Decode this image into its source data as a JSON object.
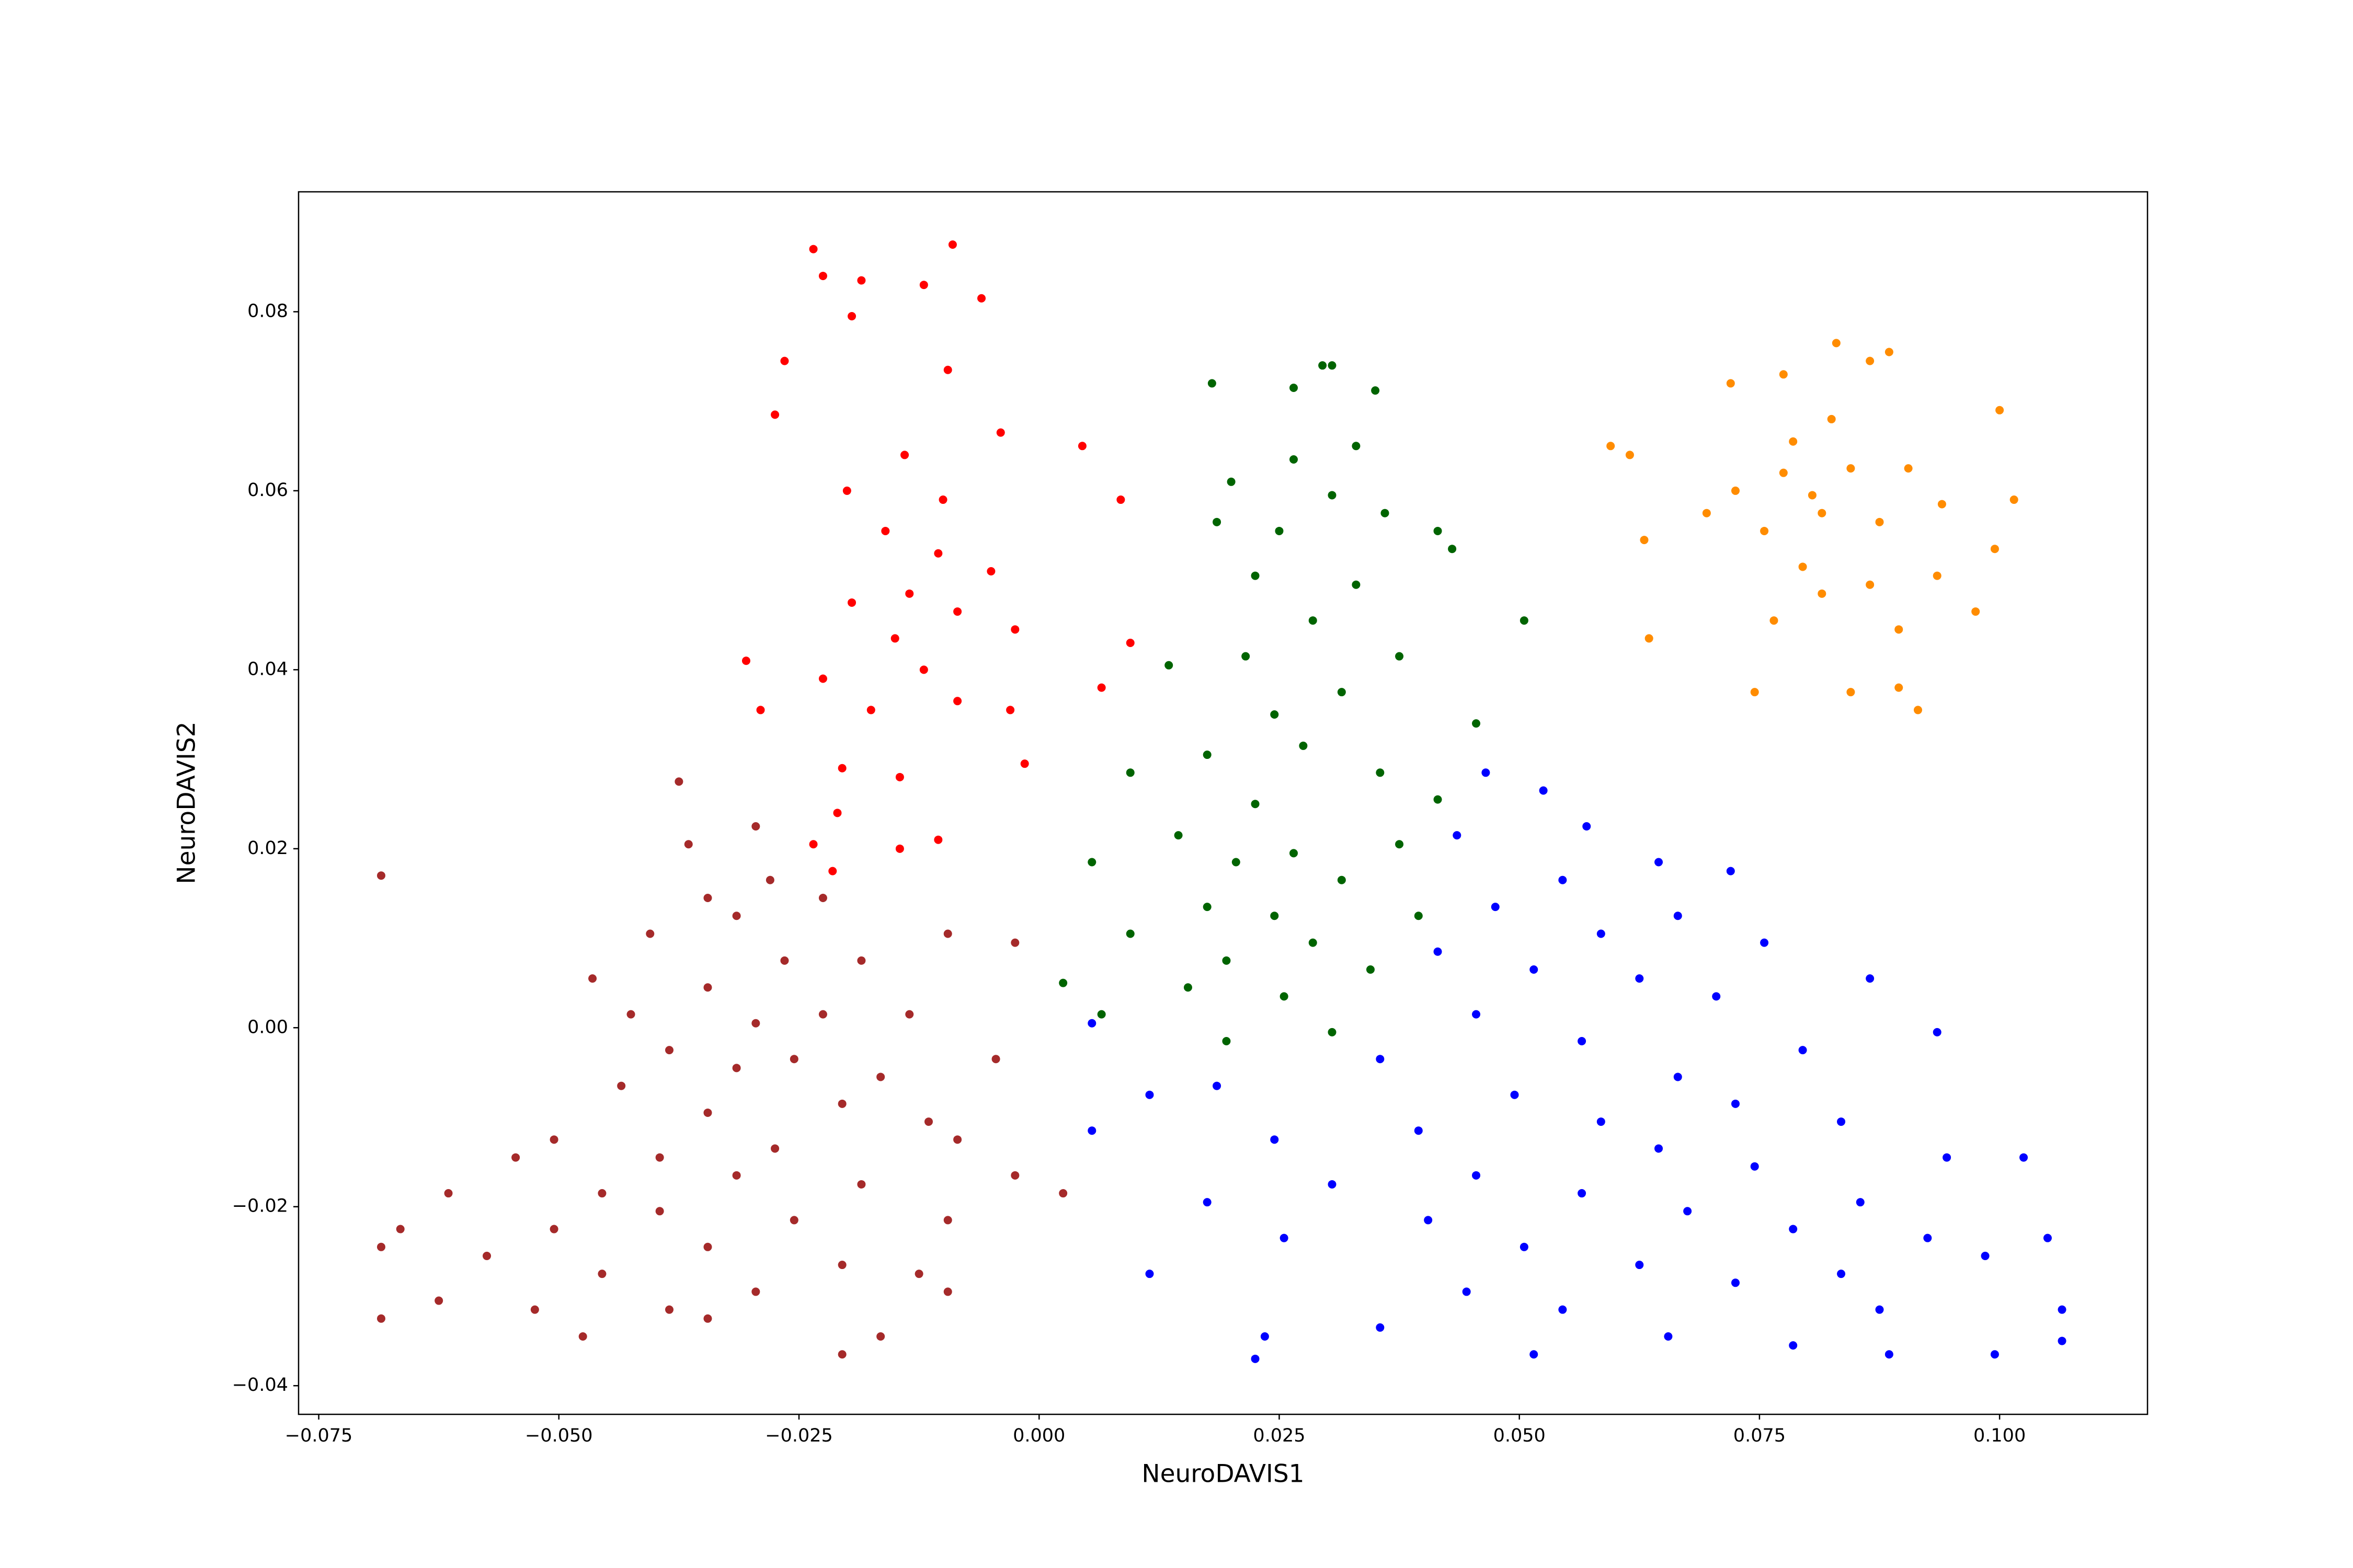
{
  "chart_data": {
    "type": "scatter",
    "x_label": "NeuroDAVIS1",
    "y_label": "NeuroDAVIS2",
    "xlim": [
      -0.0771,
      0.1154
    ],
    "ylim": [
      -0.0432,
      0.0934
    ],
    "xticks": [
      {
        "value": -0.075,
        "label": "−0.075"
      },
      {
        "value": -0.05,
        "label": "−0.050"
      },
      {
        "value": -0.025,
        "label": "−0.025"
      },
      {
        "value": 0,
        "label": "0.000"
      },
      {
        "value": 0.025,
        "label": "0.025"
      },
      {
        "value": 0.05,
        "label": "0.050"
      },
      {
        "value": 0.075,
        "label": "0.075"
      },
      {
        "value": 0.1,
        "label": "0.100"
      }
    ],
    "yticks": [
      {
        "value": -0.04,
        "label": "−0.04"
      },
      {
        "value": -0.02,
        "label": "−0.02"
      },
      {
        "value": 0,
        "label": "0.00"
      },
      {
        "value": 0.02,
        "label": "0.02"
      },
      {
        "value": 0.04,
        "label": "0.04"
      },
      {
        "value": 0.06,
        "label": "0.06"
      },
      {
        "value": 0.08,
        "label": "0.08"
      }
    ],
    "series": [
      {
        "color": "#ff8c00",
        "x": [
          0.083,
          0.0885,
          0.0865,
          0.0775,
          0.072,
          0.1,
          0.0595,
          0.0615,
          0.063,
          0.0635,
          0.0745,
          0.0845,
          0.0915,
          0.0895,
          0.0975,
          0.1015,
          0.0995,
          0.0805,
          0.0815,
          0.0775,
          0.0845,
          0.0875,
          0.0755,
          0.0795,
          0.0815,
          0.0725,
          0.0905,
          0.094,
          0.0865,
          0.0765,
          0.0935,
          0.0695,
          0.0895,
          0.0825,
          0.0785
        ],
        "y": [
          0.0765,
          0.0755,
          0.0745,
          0.073,
          0.072,
          0.069,
          0.065,
          0.064,
          0.0545,
          0.0435,
          0.0375,
          0.0375,
          0.0355,
          0.038,
          0.0465,
          0.059,
          0.0535,
          0.0595,
          0.0575,
          0.062,
          0.0625,
          0.0565,
          0.0555,
          0.0515,
          0.0485,
          0.06,
          0.0625,
          0.0585,
          0.0495,
          0.0455,
          0.0505,
          0.0575,
          0.0445,
          0.068,
          0.0655
        ]
      },
      {
        "color": "#ff0000",
        "x": [
          -0.0235,
          -0.009,
          -0.0225,
          -0.0185,
          -0.012,
          -0.006,
          -0.0195,
          -0.0265,
          -0.0095,
          -0.0275,
          -0.004,
          -0.014,
          -0.02,
          -0.01,
          0.0045,
          0.0085,
          -0.016,
          -0.0105,
          -0.005,
          -0.0135,
          -0.0085,
          -0.0195,
          -0.015,
          -0.0025,
          -0.012,
          -0.0225,
          -0.0175,
          -0.0085,
          -0.003,
          -0.029,
          -0.0305,
          -0.0205,
          -0.0145,
          -0.0015,
          0.0065,
          0.0095,
          -0.021,
          -0.0145,
          -0.0105,
          -0.0215,
          -0.0235
        ],
        "y": [
          0.087,
          0.0875,
          0.084,
          0.0835,
          0.083,
          0.0815,
          0.0795,
          0.0745,
          0.0735,
          0.0685,
          0.0665,
          0.064,
          0.06,
          0.059,
          0.065,
          0.059,
          0.0555,
          0.053,
          0.051,
          0.0485,
          0.0465,
          0.0475,
          0.0435,
          0.0445,
          0.04,
          0.039,
          0.0355,
          0.0365,
          0.0355,
          0.0355,
          0.041,
          0.029,
          0.028,
          0.0295,
          0.038,
          0.043,
          0.024,
          0.02,
          0.021,
          0.0175,
          0.0205
        ]
      },
      {
        "color": "#006400",
        "x": [
          0.0295,
          0.0305,
          0.018,
          0.035,
          0.0265,
          0.033,
          0.0265,
          0.02,
          0.0305,
          0.036,
          0.0185,
          0.025,
          0.0415,
          0.043,
          0.0225,
          0.033,
          0.0505,
          0.0285,
          0.0215,
          0.0375,
          0.0135,
          0.0315,
          0.0245,
          0.0455,
          0.0175,
          0.0275,
          0.0355,
          0.0095,
          0.0225,
          0.0415,
          0.0145,
          0.0265,
          0.0205,
          0.0375,
          0.0055,
          0.0315,
          0.0175,
          0.0245,
          0.0395,
          0.0095,
          0.0285,
          0.0195,
          0.0345,
          0.0025,
          0.0155,
          0.0255,
          0.0065,
          0.0305,
          0.0195
        ],
        "y": [
          0.074,
          0.074,
          0.072,
          0.0712,
          0.0715,
          0.065,
          0.0635,
          0.061,
          0.0595,
          0.0575,
          0.0565,
          0.0555,
          0.0555,
          0.0535,
          0.0505,
          0.0495,
          0.0455,
          0.0455,
          0.0415,
          0.0415,
          0.0405,
          0.0375,
          0.035,
          0.034,
          0.0305,
          0.0315,
          0.0285,
          0.0285,
          0.025,
          0.0255,
          0.0215,
          0.0195,
          0.0185,
          0.0205,
          0.0185,
          0.0165,
          0.0135,
          0.0125,
          0.0125,
          0.0105,
          0.0095,
          0.0075,
          0.0065,
          0.005,
          0.0045,
          0.0035,
          0.0015,
          -0.0005,
          -0.0015
        ]
      },
      {
        "color": "#0000ff",
        "x": [
          0.0465,
          0.0525,
          0.057,
          0.0435,
          0.0645,
          0.072,
          0.0545,
          0.0475,
          0.0665,
          0.0585,
          0.0755,
          0.0415,
          0.0515,
          0.0625,
          0.0865,
          0.0705,
          0.0055,
          0.0935,
          0.0455,
          0.0565,
          0.0795,
          0.0355,
          0.0665,
          0.0185,
          0.0495,
          0.0725,
          0.0115,
          0.0585,
          0.0835,
          0.0395,
          0.0245,
          0.0055,
          0.0645,
          0.0945,
          0.0745,
          0.0455,
          0.0305,
          0.0565,
          0.0855,
          0.0175,
          0.0675,
          0.1025,
          0.0405,
          0.0785,
          0.0505,
          0.0925,
          0.0255,
          0.0625,
          0.0115,
          0.0725,
          0.0835,
          0.0445,
          0.0985,
          0.0545,
          0.0875,
          0.1065,
          0.0355,
          0.0655,
          0.0235,
          0.0785,
          0.0225,
          0.0515,
          0.0885,
          0.0995,
          0.1065,
          0.105
        ],
        "y": [
          0.0285,
          0.0265,
          0.0225,
          0.0215,
          0.0185,
          0.0175,
          0.0165,
          0.0135,
          0.0125,
          0.0105,
          0.0095,
          0.0085,
          0.0065,
          0.0055,
          0.0055,
          0.0035,
          0.0005,
          -0.0005,
          0.0015,
          -0.0015,
          -0.0025,
          -0.0035,
          -0.0055,
          -0.0065,
          -0.0075,
          -0.0085,
          -0.0075,
          -0.0105,
          -0.0105,
          -0.0115,
          -0.0125,
          -0.0115,
          -0.0135,
          -0.0145,
          -0.0155,
          -0.0165,
          -0.0175,
          -0.0185,
          -0.0195,
          -0.0195,
          -0.0205,
          -0.0145,
          -0.0215,
          -0.0225,
          -0.0245,
          -0.0235,
          -0.0235,
          -0.0265,
          -0.0275,
          -0.0285,
          -0.0275,
          -0.0295,
          -0.0255,
          -0.0315,
          -0.0315,
          -0.0315,
          -0.0335,
          -0.0345,
          -0.0345,
          -0.0355,
          -0.037,
          -0.0365,
          -0.0365,
          -0.0365,
          -0.035,
          -0.0235
        ]
      },
      {
        "color": "#a52a2a",
        "x": [
          -0.0375,
          -0.0685,
          -0.0295,
          -0.0365,
          -0.028,
          -0.0345,
          -0.0225,
          -0.0315,
          -0.0405,
          -0.0025,
          -0.0095,
          -0.0465,
          -0.0265,
          -0.0185,
          -0.0345,
          -0.0425,
          -0.0295,
          -0.0225,
          -0.0135,
          -0.0385,
          -0.0315,
          -0.0255,
          -0.0165,
          -0.0045,
          -0.0435,
          -0.0205,
          -0.0345,
          -0.0115,
          -0.0505,
          -0.0275,
          -0.0395,
          -0.0085,
          -0.0545,
          -0.0315,
          -0.0185,
          -0.0455,
          -0.0025,
          -0.0395,
          -0.0615,
          -0.0255,
          -0.0505,
          -0.0095,
          -0.0665,
          -0.0345,
          -0.0575,
          -0.0205,
          -0.0455,
          -0.0685,
          -0.0125,
          -0.0295,
          -0.0625,
          -0.0525,
          -0.0385,
          -0.0095,
          -0.0685,
          -0.0475,
          -0.0345,
          -0.0205,
          -0.0165,
          0.0025
        ],
        "y": [
          0.0275,
          0.017,
          0.0225,
          0.0205,
          0.0165,
          0.0145,
          0.0145,
          0.0125,
          0.0105,
          0.0095,
          0.0105,
          0.0055,
          0.0075,
          0.0075,
          0.0045,
          0.0015,
          0.0005,
          0.0015,
          0.0015,
          -0.0025,
          -0.0045,
          -0.0035,
          -0.0055,
          -0.0035,
          -0.0065,
          -0.0085,
          -0.0095,
          -0.0105,
          -0.0125,
          -0.0135,
          -0.0145,
          -0.0125,
          -0.0145,
          -0.0165,
          -0.0175,
          -0.0185,
          -0.0165,
          -0.0205,
          -0.0185,
          -0.0215,
          -0.0225,
          -0.0215,
          -0.0225,
          -0.0245,
          -0.0255,
          -0.0265,
          -0.0275,
          -0.0245,
          -0.0275,
          -0.0295,
          -0.0305,
          -0.0315,
          -0.0315,
          -0.0295,
          -0.0325,
          -0.0345,
          -0.0325,
          -0.0365,
          -0.0345,
          -0.0185
        ]
      }
    ]
  }
}
